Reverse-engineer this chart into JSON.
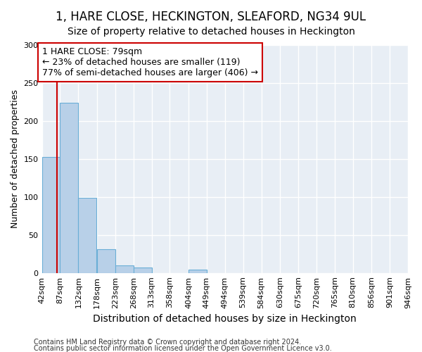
{
  "title1": "1, HARE CLOSE, HECKINGTON, SLEAFORD, NG34 9UL",
  "title2": "Size of property relative to detached houses in Heckington",
  "xlabel": "Distribution of detached houses by size in Heckington",
  "ylabel": "Number of detached properties",
  "footer1": "Contains HM Land Registry data © Crown copyright and database right 2024.",
  "footer2": "Contains public sector information licensed under the Open Government Licence v3.0.",
  "bin_edges": [
    42,
    87,
    132,
    178,
    223,
    268,
    313,
    358,
    404,
    449,
    494,
    539,
    584,
    630,
    675,
    720,
    765,
    810,
    856,
    901,
    946
  ],
  "bar_heights": [
    153,
    224,
    99,
    31,
    10,
    7,
    0,
    0,
    4,
    0,
    0,
    0,
    0,
    0,
    0,
    0,
    0,
    0,
    0,
    0
  ],
  "bar_color": "#b8d0e8",
  "bar_edge_color": "#6aaed6",
  "property_size": 79,
  "red_line_color": "#cc0000",
  "annotation_line1": "1 HARE CLOSE: 79sqm",
  "annotation_line2": "← 23% of detached houses are smaller (119)",
  "annotation_line3": "77% of semi-detached houses are larger (406) →",
  "annotation_box_color": "#ffffff",
  "annotation_box_edge_color": "#cc0000",
  "ylim": [
    0,
    300
  ],
  "yticks": [
    0,
    50,
    100,
    150,
    200,
    250,
    300
  ],
  "background_color": "#e8eef5",
  "grid_color": "#ffffff",
  "title1_fontsize": 12,
  "title2_fontsize": 10,
  "xlabel_fontsize": 10,
  "ylabel_fontsize": 9,
  "tick_fontsize": 8,
  "annotation_fontsize": 9,
  "footer_fontsize": 7
}
